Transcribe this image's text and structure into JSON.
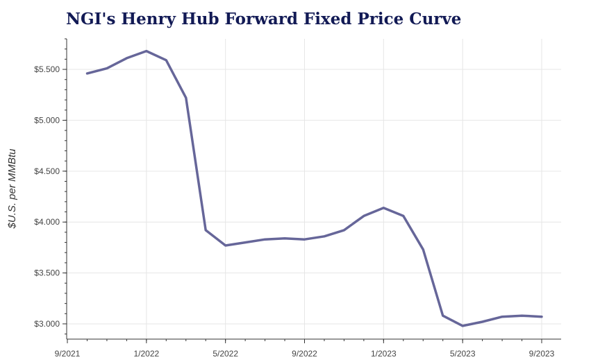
{
  "chart_data": {
    "type": "line",
    "title": "NGI's Henry Hub Forward Fixed Price Curve",
    "xlabel": "",
    "ylabel": "$U.S. per MMBtu",
    "x_ticks": [
      "9/2021",
      "1/2022",
      "5/2022",
      "9/2022",
      "1/2023",
      "5/2023",
      "9/2023"
    ],
    "y_ticks": [
      "$3.000",
      "$3.500",
      "$4.000",
      "$4.500",
      "$5.000",
      "$5.500"
    ],
    "ylim": [
      2.85,
      5.8
    ],
    "xlim": [
      "2021-09",
      "2023-09"
    ],
    "grid": true,
    "series": [
      {
        "color": "#666699",
        "x": [
          "2021-10",
          "2021-11",
          "2021-12",
          "2022-01",
          "2022-02",
          "2022-03",
          "2022-04",
          "2022-05",
          "2022-06",
          "2022-07",
          "2022-08",
          "2022-09",
          "2022-10",
          "2022-11",
          "2022-12",
          "2023-01",
          "2023-02",
          "2023-03",
          "2023-04",
          "2023-05",
          "2023-06",
          "2023-07",
          "2023-08",
          "2023-09"
        ],
        "values": [
          5.46,
          5.51,
          5.61,
          5.68,
          5.59,
          5.22,
          3.92,
          3.77,
          3.8,
          3.83,
          3.84,
          3.83,
          3.86,
          3.92,
          4.06,
          4.14,
          4.06,
          3.73,
          3.08,
          2.98,
          3.02,
          3.07,
          3.08,
          3.07
        ]
      }
    ]
  }
}
